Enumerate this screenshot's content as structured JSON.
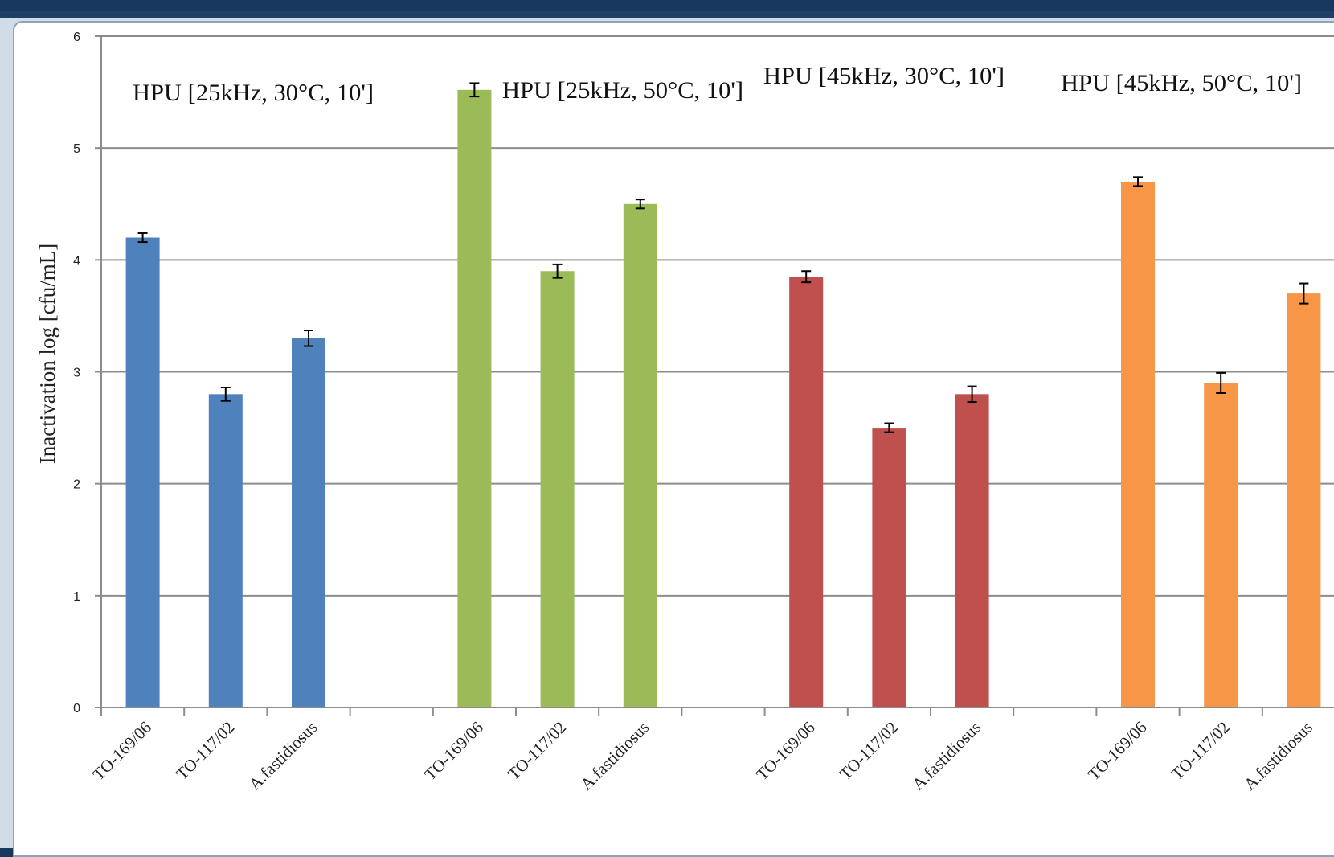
{
  "chart_data": {
    "type": "bar",
    "title": "",
    "ylabel": "Inactivation   log  [cfu/mL]",
    "ylim": [
      0,
      6
    ],
    "yticks": [
      "0",
      "1",
      "2",
      "3",
      "4",
      "5",
      "6"
    ],
    "grid": true,
    "groups": [
      {
        "label": "HPU [25kHz, 30°C, 10']",
        "color": "#4f81bd",
        "categories": [
          "TO-169/06",
          "TO-117/02",
          "A.fastidiosus"
        ],
        "values": [
          4.2,
          2.8,
          3.3
        ],
        "errors": [
          0.04,
          0.06,
          0.07
        ]
      },
      {
        "label": "HPU [25kHz, 50°C, 10']",
        "color": "#9bbb59",
        "categories": [
          "TO-169/06",
          "TO-117/02",
          "A.fastidiosus"
        ],
        "values": [
          5.52,
          3.9,
          4.5
        ],
        "errors": [
          0.06,
          0.06,
          0.04
        ]
      },
      {
        "label": "HPU [45kHz, 30°C, 10']",
        "color": "#c0504d",
        "categories": [
          "TO-169/06",
          "TO-117/02",
          "A.fastidiosus"
        ],
        "values": [
          3.85,
          2.5,
          2.8
        ],
        "errors": [
          0.05,
          0.04,
          0.07
        ]
      },
      {
        "label": "HPU [45kHz, 50°C, 10']",
        "color": "#f79646",
        "categories": [
          "TO-169/06",
          "TO-117/02",
          "A.fastidiosus"
        ],
        "values": [
          4.7,
          2.9,
          3.7
        ],
        "errors": [
          0.04,
          0.09,
          0.09
        ]
      }
    ]
  }
}
